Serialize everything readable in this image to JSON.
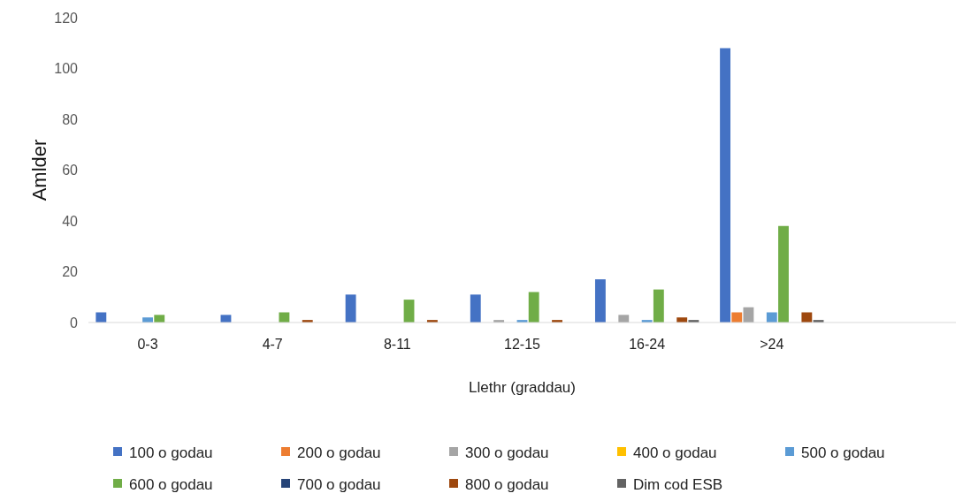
{
  "chart_data": {
    "type": "bar",
    "xlabel": "Llethr (graddau)",
    "ylabel": "Amlder",
    "categories": [
      "0-3",
      "4-7",
      "8-11",
      "12-15",
      "16-24",
      ">24",
      null
    ],
    "ylim": [
      0,
      120
    ],
    "yticks": [
      0,
      20,
      40,
      60,
      80,
      100,
      120
    ],
    "grid": false,
    "legend": "bottom",
    "series": [
      {
        "name": "100 o godau",
        "color": "#4472c4",
        "values": [
          4,
          3,
          11,
          11,
          17,
          108,
          null
        ]
      },
      {
        "name": "200 o godau",
        "color": "#ed7d31",
        "values": [
          null,
          null,
          null,
          null,
          null,
          4,
          null
        ]
      },
      {
        "name": "300 o godau",
        "color": "#a5a5a5",
        "values": [
          null,
          null,
          null,
          1,
          3,
          6,
          null
        ]
      },
      {
        "name": "400 o godau",
        "color": "#ffc000",
        "values": [
          null,
          null,
          null,
          null,
          null,
          null,
          null
        ]
      },
      {
        "name": "500 o godau",
        "color": "#5b9bd5",
        "values": [
          2,
          null,
          null,
          1,
          1,
          4,
          null
        ]
      },
      {
        "name": "600 o godau",
        "color": "#70ad47",
        "values": [
          3,
          4,
          9,
          12,
          13,
          38,
          null
        ]
      },
      {
        "name": "700 o godau",
        "color": "#264478",
        "values": [
          null,
          null,
          null,
          null,
          null,
          null,
          null
        ]
      },
      {
        "name": "800 o godau",
        "color": "#9e480e",
        "values": [
          null,
          1,
          1,
          1,
          2,
          4,
          null
        ]
      },
      {
        "name": "Dim cod ESB",
        "color": "#636363",
        "values": [
          null,
          null,
          null,
          null,
          1,
          1,
          null
        ]
      }
    ]
  }
}
